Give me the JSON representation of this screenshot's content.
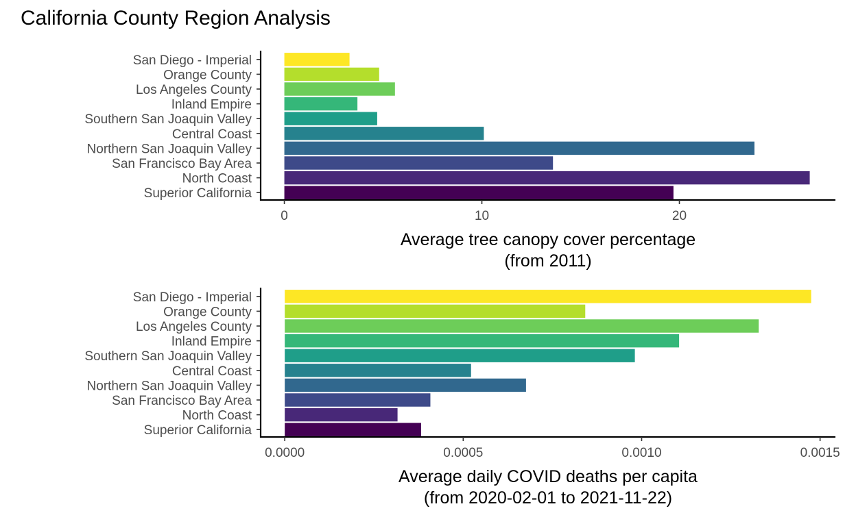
{
  "title": "California County Region Analysis",
  "chart_data": [
    {
      "type": "bar",
      "orientation": "horizontal",
      "categories": [
        "San Diego - Imperial",
        "Orange County",
        "Los Angeles County",
        "Inland Empire",
        "Southern San Joaquin Valley",
        "Central Coast",
        "Northern San Joaquin Valley",
        "San Francisco Bay Area",
        "North Coast",
        "Superior California"
      ],
      "values": [
        3.3,
        4.8,
        5.6,
        3.7,
        4.7,
        10.1,
        23.8,
        13.6,
        26.6,
        19.7
      ],
      "colors": [
        "#FDE725",
        "#B4DE2C",
        "#6DCD59",
        "#35B779",
        "#1F9E89",
        "#26828E",
        "#31688E",
        "#3E4A89",
        "#482878",
        "#440154"
      ],
      "xlim": [
        -1.2,
        27.9
      ],
      "xticks": [
        0,
        10,
        20
      ],
      "xtick_labels": [
        "0",
        "10",
        "20"
      ],
      "xlabel": [
        "Average tree canopy cover percentage",
        "(from 2011)"
      ],
      "ylabel": "",
      "grid": false
    },
    {
      "type": "bar",
      "orientation": "horizontal",
      "categories": [
        "San Diego - Imperial",
        "Orange County",
        "Los Angeles County",
        "Inland Empire",
        "Southern San Joaquin Valley",
        "Central Coast",
        "Northern San Joaquin Valley",
        "San Francisco Bay Area",
        "North Coast",
        "Superior California"
      ],
      "values": [
        0.001475,
        0.000842,
        0.001328,
        0.001105,
        0.000981,
        0.000522,
        0.000676,
        0.000408,
        0.000316,
        0.000382
      ],
      "colors": [
        "#FDE725",
        "#B4DE2C",
        "#6DCD59",
        "#35B779",
        "#1F9E89",
        "#26828E",
        "#31688E",
        "#3E4A89",
        "#482878",
        "#440154"
      ],
      "xlim": [
        -6.76e-05,
        0.001543
      ],
      "xticks": [
        0,
        0.0005,
        0.001,
        0.0015
      ],
      "xtick_labels": [
        "0.0000",
        "0.0005",
        "0.0010",
        "0.0015"
      ],
      "xlabel": [
        "Average daily COVID deaths per capita",
        "(from 2020-02-01 to 2021-11-22)"
      ],
      "ylabel": "",
      "grid": false
    }
  ]
}
